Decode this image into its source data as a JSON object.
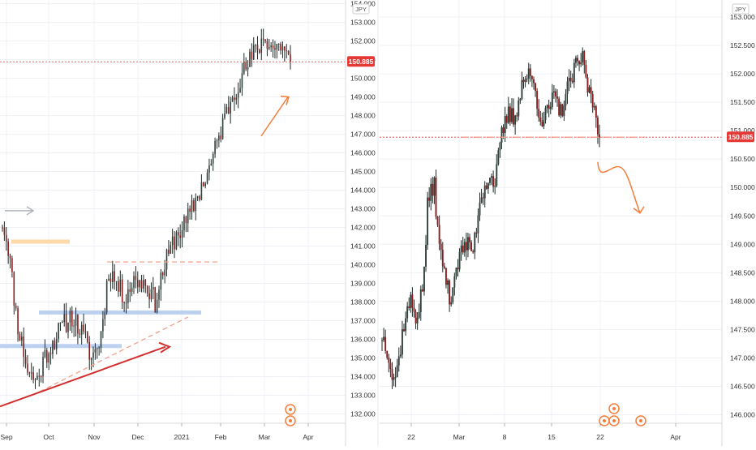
{
  "layout_panels": [
    "left",
    "right"
  ],
  "colors": {
    "up": "#2f3f3a",
    "down": "#8a1d1d",
    "wick": "#1f2a27",
    "grid": "#eef1f5",
    "axis_text": "#333333",
    "price_line": "#e53935",
    "price_label_bg": "#e53935",
    "price_label_text": "#ffffff",
    "arrow_orange": "#f57c3a",
    "arrow_red": "#d32f2f",
    "zone_orange": "#fbd9a8",
    "zone_blue": "#bcd0f0",
    "dashed_salmon": "#f4a08a",
    "arrow_grey": "#b0b4bc"
  },
  "left_panel": {
    "currency_label": "JPY",
    "price_label": "150.885",
    "x_labels": [
      "Sep",
      "Oct",
      "Nov",
      "Dec",
      "2021",
      "Feb",
      "Mar",
      "Apr"
    ],
    "icons": [
      "event-icon",
      "event-icon"
    ]
  },
  "right_panel": {
    "currency_label": "JPY",
    "price_label": "150.885",
    "x_labels": [
      "22",
      "Mar",
      "8",
      "15",
      "22",
      "Apr"
    ],
    "icons": [
      "event-icon",
      "event-icon",
      "event-icon",
      "event-icon"
    ]
  },
  "chart_data": [
    {
      "type": "candlestick",
      "panel": "left",
      "ylim": [
        131.5,
        154.2
      ],
      "y_ticks": [
        132.0,
        133.0,
        134.0,
        135.0,
        136.0,
        137.0,
        138.0,
        139.0,
        140.0,
        141.0,
        142.0,
        143.0,
        144.0,
        145.0,
        146.0,
        147.0,
        148.0,
        149.0,
        150.0,
        151.0,
        152.0,
        153.0,
        154.0
      ],
      "x_tick_labels": [
        "Sep",
        "Oct",
        "Nov",
        "Dec",
        "2021",
        "Feb",
        "Mar",
        "Apr"
      ],
      "last_price": 150.885,
      "key_points": [
        {
          "x": "Sep",
          "y": 142.5
        },
        {
          "x": "late Sep",
          "y": 133.2
        },
        {
          "x": "Oct",
          "y": 136.5
        },
        {
          "x": "Nov",
          "y": 134.5
        },
        {
          "x": "early Nov",
          "y": 140.1
        },
        {
          "x": "Dec",
          "y": 138.0
        },
        {
          "x": "2021",
          "y": 140.5
        },
        {
          "x": "Feb",
          "y": 143.5
        },
        {
          "x": "Mar",
          "y": 149.0
        },
        {
          "x": "mid Mar",
          "y": 152.5
        },
        {
          "x": "late Mar",
          "y": 150.885
        }
      ]
    },
    {
      "type": "candlestick",
      "panel": "right",
      "ylim": [
        145.85,
        153.3
      ],
      "y_ticks": [
        146.0,
        146.5,
        147.0,
        147.5,
        148.0,
        148.5,
        149.0,
        149.5,
        150.0,
        150.5,
        151.0,
        151.5,
        152.0,
        152.5,
        153.0
      ],
      "x_tick_labels": [
        "22",
        "Mar",
        "8",
        "15",
        "22",
        "Apr"
      ],
      "last_price": 150.885,
      "key_points": [
        {
          "x": "start",
          "y": 147.4
        },
        {
          "x": "early",
          "y": 146.6
        },
        {
          "x": "22",
          "y": 147.8
        },
        {
          "x": "Mar",
          "y": 150.2
        },
        {
          "x": "Mar+",
          "y": 148.2
        },
        {
          "x": "8",
          "y": 150.5
        },
        {
          "x": "15",
          "y": 152.0
        },
        {
          "x": "between",
          "y": 151.3
        },
        {
          "x": "peak",
          "y": 152.4
        },
        {
          "x": "22",
          "y": 150.885
        }
      ]
    }
  ]
}
